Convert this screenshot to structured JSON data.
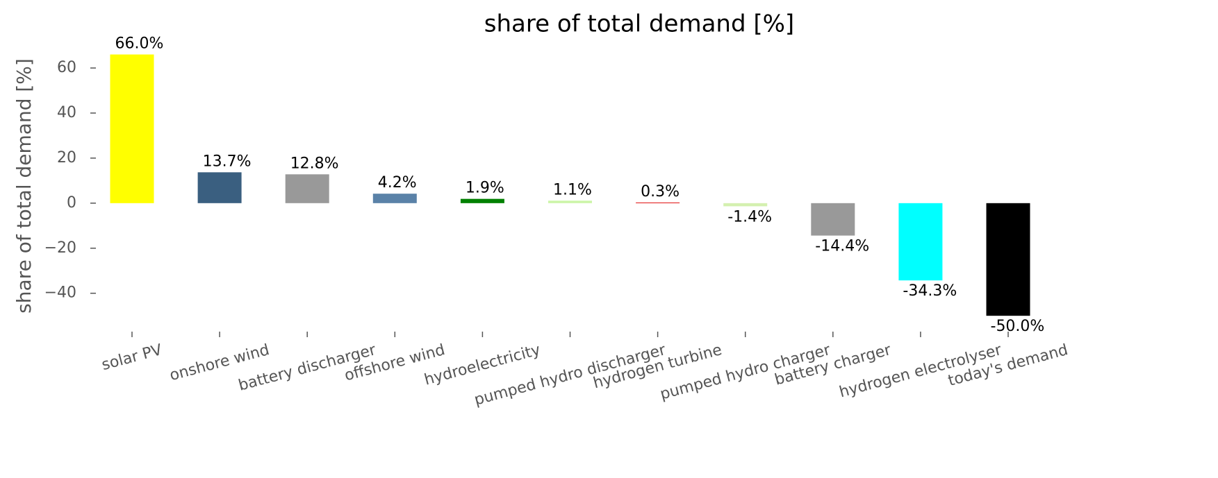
{
  "chart_data": {
    "type": "bar",
    "title": "share of total demand [%]",
    "y_label": "share of total demand [%]",
    "categories": [
      "solar PV",
      "onshore wind",
      "battery discharger",
      "offshore wind",
      "hydroelectricity",
      "pumped hydro discharger",
      "hydrogen turbine",
      "pumped hydro charger",
      "battery charger",
      "hydrogen electrolyser",
      "today's demand"
    ],
    "values": [
      66.0,
      13.7,
      12.8,
      4.2,
      1.9,
      1.1,
      0.3,
      -1.4,
      -14.4,
      -34.3,
      -50.0
    ],
    "value_labels": [
      "66.0%",
      "13.7%",
      "12.8%",
      "4.2%",
      "1.9%",
      "1.1%",
      "0.3%",
      "-1.4%",
      "-14.4%",
      "-34.3%",
      "-50.0%"
    ],
    "colors": [
      "#ffff00",
      "#3a5f80",
      "#999999",
      "#5a82a8",
      "#008000",
      "#ccf5a8",
      "#e00000",
      "#d4f0b0",
      "#999999",
      "#00ffff",
      "#000000"
    ],
    "ylim": [
      -55.8,
      71.8
    ],
    "yticks": [
      {
        "value": -40,
        "label": "−40"
      },
      {
        "value": -20,
        "label": "−20"
      },
      0,
      20,
      40,
      60
    ],
    "grid": false
  }
}
